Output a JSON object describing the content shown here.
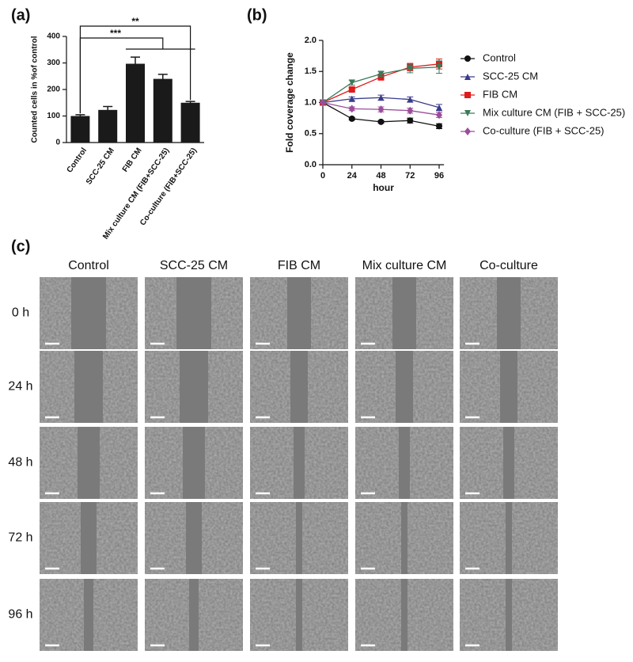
{
  "chart_data": [
    {
      "type": "bar",
      "panel": "(a)",
      "ylabel": "Counted cells in %of control",
      "categories": [
        "Control",
        "SCC-25 CM",
        "FIB CM",
        "Mix culture CM (FIB+SCC-25)",
        "Co-culture (FIB+SCC-25)"
      ],
      "values": [
        100,
        123,
        297,
        240,
        150
      ],
      "errors": [
        5,
        13,
        25,
        17,
        5
      ],
      "color": "#1a1a1a",
      "ylim": [
        0,
        400
      ],
      "yticks": [
        0,
        100,
        200,
        300,
        400
      ],
      "annotations": [
        "***",
        "**"
      ]
    },
    {
      "type": "line",
      "panel": "(b)",
      "xlabel": "hour",
      "ylabel": "Fold coverage change",
      "x": [
        0,
        24,
        48,
        72,
        96
      ],
      "xlim": [
        0,
        100
      ],
      "xticks": [
        0,
        24,
        48,
        72,
        96
      ],
      "ylim": [
        0,
        2
      ],
      "yticks": [
        {
          "value": 0,
          "label": "0.0"
        },
        0.5,
        {
          "value": 1,
          "label": "1.0"
        },
        1.5,
        {
          "value": 2,
          "label": "2.0"
        }
      ],
      "legend": "right",
      "series": [
        {
          "name": "Control",
          "color": "#111111",
          "marker": "circle",
          "values": [
            1,
            0.74,
            0.69,
            0.71,
            0.62
          ],
          "errors": [
            0.02,
            0.02,
            0.02,
            0.04,
            0.04
          ]
        },
        {
          "name": "SCC-25 CM",
          "color": "#3a3a8c",
          "marker": "triangle",
          "values": [
            1,
            1.06,
            1.08,
            1.05,
            0.92
          ],
          "errors": [
            0.02,
            0.03,
            0.04,
            0.04,
            0.05
          ]
        },
        {
          "name": "FIB CM",
          "color": "#e01b1b",
          "marker": "square",
          "values": [
            1,
            1.21,
            1.41,
            1.57,
            1.62
          ],
          "errors": [
            0.02,
            0.03,
            0.05,
            0.06,
            0.08
          ]
        },
        {
          "name": "Mix culture CM (FIB + SCC-25)",
          "color": "#3b7a5a",
          "marker": "triangle-down",
          "values": [
            1,
            1.32,
            1.46,
            1.55,
            1.57
          ],
          "errors": [
            0.02,
            0.04,
            0.04,
            0.07,
            0.1
          ]
        },
        {
          "name": "Co-culture (FIB + SCC-25)",
          "color": "#9b4d9b",
          "marker": "diamond",
          "values": [
            1,
            0.9,
            0.89,
            0.87,
            0.8
          ],
          "errors": [
            0.02,
            0.03,
            0.04,
            0.04,
            0.04
          ]
        }
      ]
    }
  ],
  "micrographs": {
    "label": "(c)",
    "columns": [
      "Control",
      "SCC-25 CM",
      "FIB CM",
      "Mix culture CM",
      "Co-culture"
    ],
    "rows": [
      "0 h",
      "24 h",
      "48 h",
      "72 h",
      "96 h"
    ]
  }
}
